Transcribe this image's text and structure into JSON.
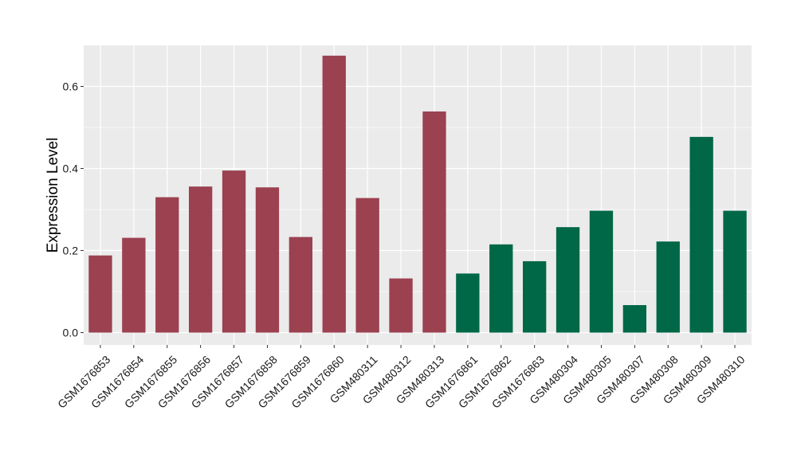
{
  "chart_data": {
    "type": "bar",
    "title": "",
    "xlabel": "",
    "ylabel": "Expression Level",
    "ylim": [
      -0.03,
      0.7
    ],
    "yticks": [
      0.0,
      0.2,
      0.4,
      0.6
    ],
    "ytick_labels": [
      "0.0",
      "0.2",
      "0.4",
      "0.6"
    ],
    "grid": true,
    "legend": "none",
    "categories": [
      "GSM1676853",
      "GSM1676854",
      "GSM1676855",
      "GSM1676856",
      "GSM1676857",
      "GSM1676858",
      "GSM1676859",
      "GSM1676860",
      "GSM480311",
      "GSM480312",
      "GSM480313",
      "GSM1676861",
      "GSM1676862",
      "GSM1676863",
      "GSM480304",
      "GSM480305",
      "GSM480307",
      "GSM480308",
      "GSM480309",
      "GSM480310"
    ],
    "values": [
      0.188,
      0.231,
      0.33,
      0.356,
      0.395,
      0.354,
      0.233,
      0.675,
      0.328,
      0.132,
      0.539,
      0.144,
      0.215,
      0.174,
      0.257,
      0.297,
      0.067,
      0.222,
      0.477,
      0.297
    ],
    "group_colors": [
      "#9b4150",
      "#9b4150",
      "#9b4150",
      "#9b4150",
      "#9b4150",
      "#9b4150",
      "#9b4150",
      "#9b4150",
      "#9b4150",
      "#9b4150",
      "#9b4150",
      "#006747",
      "#006747",
      "#006747",
      "#006747",
      "#006747",
      "#006747",
      "#006747",
      "#006747",
      "#006747"
    ],
    "panel_background": "#ebebeb",
    "grid_color": "#ffffff"
  }
}
